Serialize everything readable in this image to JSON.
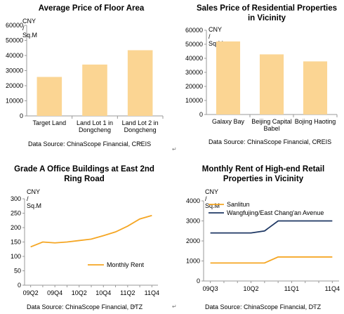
{
  "colors": {
    "bar": "#fbd593",
    "orange": "#f5a623",
    "navy": "#1f3864",
    "axis": "#999999",
    "grid": "#d9d9d9"
  },
  "chart_data": [
    {
      "type": "bar",
      "title": "Average Price of Floor Area",
      "ylabel": "CNY / Sq.M",
      "categories": [
        "Target Land",
        "Land Lot 1 in\nDongcheng",
        "Land Lot 2 in\nDongcheng"
      ],
      "values": [
        25800,
        34000,
        43500
      ],
      "ylim": [
        0,
        60000
      ],
      "yticks": [
        0,
        10000,
        20000,
        30000,
        40000,
        50000,
        60000
      ],
      "grid": false,
      "source": "Data Source: ChinaScope Financial, CREIS"
    },
    {
      "type": "bar",
      "title": "Sales Price of Residential Properties\nin Vicinity",
      "ylabel": "CNY / Sq.M",
      "categories": [
        "Galaxy Bay",
        "Beijing Capital\nBabel",
        "Bojing Haoting"
      ],
      "values": [
        52000,
        42800,
        37800
      ],
      "ylim": [
        0,
        60000
      ],
      "yticks": [
        0,
        10000,
        20000,
        30000,
        40000,
        50000,
        60000
      ],
      "grid": false,
      "source": "Data Source: ChinaScope Financial, CREIS"
    },
    {
      "type": "line",
      "title": "Grade A Office Buildings at East 2nd\nRing Road",
      "ylabel": "CNY / Sq.M",
      "x": [
        "09Q2",
        "09Q3",
        "09Q4",
        "10Q1",
        "10Q2",
        "10Q3",
        "10Q4",
        "11Q1",
        "11Q2",
        "11Q3",
        "11Q4"
      ],
      "xticks": [
        "09Q2",
        "09Q4",
        "10Q2",
        "10Q4",
        "11Q2",
        "11Q4"
      ],
      "series": [
        {
          "name": "Monthly Rent",
          "values": [
            133,
            150,
            147,
            150,
            155,
            160,
            172,
            185,
            205,
            230,
            242
          ],
          "color": "#f5a623"
        }
      ],
      "ylim": [
        0,
        300
      ],
      "yticks": [
        0,
        50,
        100,
        150,
        200,
        250,
        300
      ],
      "grid": false,
      "legend": "right",
      "source": "Data Source: ChinaScope Financial, DTZ"
    },
    {
      "type": "line",
      "title": "Monthly Rent of High-end Retail\nProperties in Vicinity",
      "ylabel": "CNY / Sq.M",
      "x": [
        "09Q3",
        "09Q4",
        "10Q1",
        "10Q2",
        "10Q3",
        "10Q4",
        "11Q1",
        "11Q2",
        "11Q3",
        "11Q4"
      ],
      "xticks": [
        "09Q3",
        "10Q2",
        "11Q1",
        "11Q4"
      ],
      "series": [
        {
          "name": "Sanlitun",
          "values": [
            900,
            900,
            900,
            900,
            900,
            1200,
            1200,
            1200,
            1200,
            1200
          ],
          "color": "#f5a623"
        },
        {
          "name": "Wangfujing/East Chang'an Avenue",
          "values": [
            2400,
            2400,
            2400,
            2400,
            2500,
            3000,
            3000,
            3000,
            3000,
            3000
          ],
          "color": "#1f3864"
        }
      ],
      "ylim": [
        0,
        4000
      ],
      "yticks": [
        0,
        1000,
        2000,
        3000,
        4000
      ],
      "grid": false,
      "legend": "top-left",
      "source": "Data Source: ChinaScope Financial, DTZ"
    }
  ]
}
